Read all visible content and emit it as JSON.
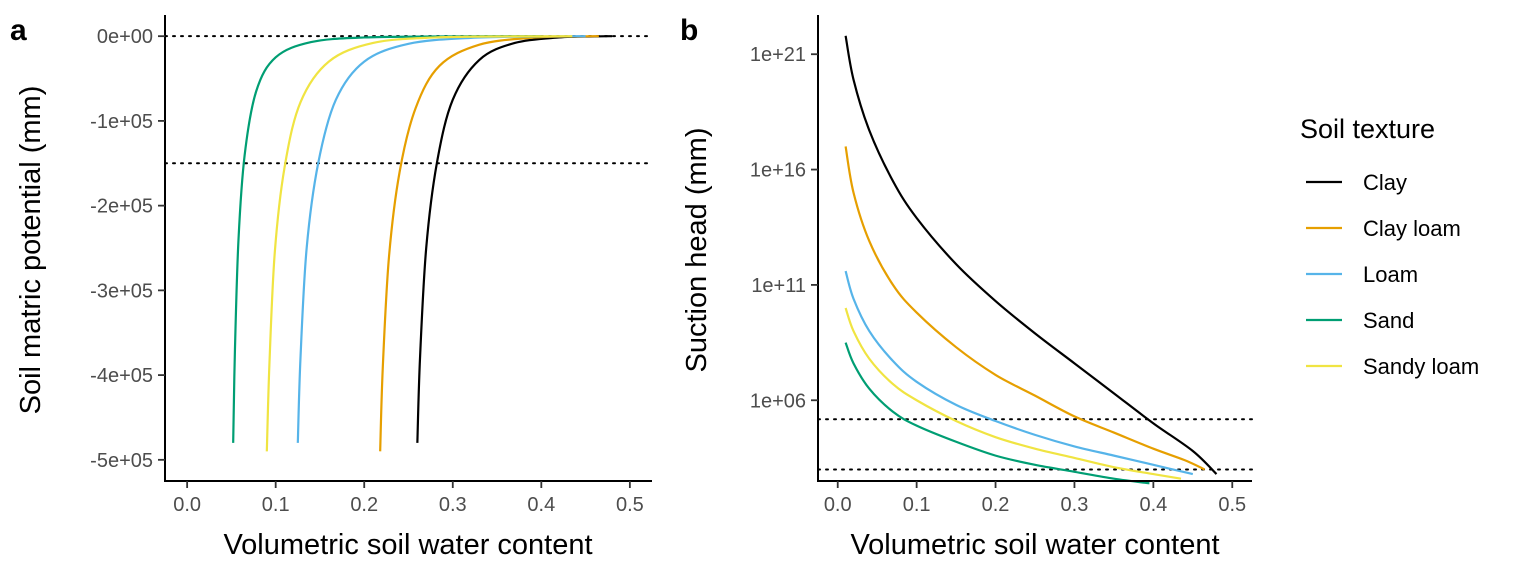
{
  "panels": {
    "a": {
      "tag": "a"
    },
    "b": {
      "tag": "b"
    }
  },
  "legend": {
    "title": "Soil texture",
    "placement": "right",
    "entries": [
      {
        "name": "Clay",
        "color": "#000000"
      },
      {
        "name": "Clay loam",
        "color": "#E69F00"
      },
      {
        "name": "Loam",
        "color": "#56B4E9"
      },
      {
        "name": "Sand",
        "color": "#009E73"
      },
      {
        "name": "Sandy loam",
        "color": "#F0E442"
      }
    ]
  },
  "chart_data": [
    {
      "type": "line",
      "panel": "a",
      "xlabel": "Volumetric soil water content",
      "ylabel": "Soil matric potential (mm)",
      "xlim": [
        -0.025,
        0.525
      ],
      "ylim": [
        -525000,
        25000
      ],
      "x_ticks": [
        0.0,
        0.1,
        0.2,
        0.3,
        0.4,
        0.5
      ],
      "x_tick_labels": [
        "0.0",
        "0.1",
        "0.2",
        "0.3",
        "0.4",
        "0.5"
      ],
      "y_ticks": [
        0,
        -100000,
        -200000,
        -300000,
        -400000,
        -500000
      ],
      "y_tick_labels": [
        "0e+00",
        "-1e+05",
        "-2e+05",
        "-3e+05",
        "-4e+05",
        "-5e+05"
      ],
      "reference_lines_y": [
        0,
        -150000
      ],
      "reference_line_style": "dotted",
      "grid": false,
      "series": [
        {
          "name": "Clay",
          "color": "#000000",
          "x": [
            0.26,
            0.263,
            0.27,
            0.282,
            0.3,
            0.33,
            0.37,
            0.42,
            0.46,
            0.48
          ],
          "y": [
            -480000,
            -380000,
            -250000,
            -150000,
            -75000,
            -28000,
            -8000,
            -1500,
            -300,
            0
          ]
        },
        {
          "name": "Clay loam",
          "color": "#E69F00",
          "x": [
            0.218,
            0.221,
            0.228,
            0.24,
            0.258,
            0.285,
            0.33,
            0.39,
            0.44,
            0.465
          ],
          "y": [
            -490000,
            -390000,
            -260000,
            -160000,
            -85000,
            -35000,
            -10000,
            -1800,
            -300,
            0
          ]
        },
        {
          "name": "Loam",
          "color": "#56B4E9",
          "x": [
            0.125,
            0.128,
            0.135,
            0.148,
            0.168,
            0.2,
            0.25,
            0.32,
            0.4,
            0.45
          ],
          "y": [
            -480000,
            -380000,
            -250000,
            -150000,
            -75000,
            -30000,
            -9000,
            -2000,
            -300,
            0
          ]
        },
        {
          "name": "Sand",
          "color": "#009E73",
          "x": [
            0.052,
            0.054,
            0.058,
            0.065,
            0.078,
            0.1,
            0.14,
            0.2,
            0.3,
            0.4
          ],
          "y": [
            -480000,
            -370000,
            -240000,
            -140000,
            -65000,
            -25000,
            -7000,
            -1500,
            -200,
            0
          ]
        },
        {
          "name": "Sandy loam",
          "color": "#F0E442",
          "x": [
            0.09,
            0.093,
            0.099,
            0.11,
            0.128,
            0.16,
            0.21,
            0.28,
            0.37,
            0.435
          ],
          "y": [
            -490000,
            -385000,
            -255000,
            -155000,
            -78000,
            -30000,
            -8000,
            -1500,
            -250,
            0
          ]
        }
      ]
    },
    {
      "type": "line",
      "panel": "b",
      "xlabel": "Volumetric soil water content",
      "ylabel": "Suction head (mm)",
      "y_scale": "log10",
      "xlim": [
        -0.025,
        0.525
      ],
      "ylim_log10": [
        2.5,
        22.7
      ],
      "x_ticks": [
        0.0,
        0.1,
        0.2,
        0.3,
        0.4,
        0.5
      ],
      "x_tick_labels": [
        "0.0",
        "0.1",
        "0.2",
        "0.3",
        "0.4",
        "0.5"
      ],
      "y_ticks": [
        1000000.0,
        100000000000.0,
        1e+16,
        1e+21
      ],
      "y_tick_labels": [
        "1e+06",
        "1e+11",
        "1e+16",
        "1e+21"
      ],
      "reference_lines_y": [
        150000,
        1000
      ],
      "reference_line_style": "dotted",
      "grid": false,
      "series": [
        {
          "name": "Clay",
          "color": "#000000",
          "x": [
            0.01,
            0.02,
            0.04,
            0.07,
            0.1,
            0.15,
            0.2,
            0.25,
            0.3,
            0.35,
            0.4,
            0.45,
            0.48
          ],
          "y_log10": [
            21.8,
            19.9,
            17.7,
            15.5,
            13.9,
            11.9,
            10.3,
            8.9,
            7.6,
            6.3,
            5.0,
            3.8,
            2.8
          ]
        },
        {
          "name": "Clay loam",
          "color": "#E69F00",
          "x": [
            0.01,
            0.02,
            0.04,
            0.07,
            0.1,
            0.15,
            0.2,
            0.25,
            0.3,
            0.35,
            0.4,
            0.44,
            0.465
          ],
          "y_log10": [
            17.0,
            15.0,
            12.9,
            11.0,
            9.8,
            8.3,
            7.1,
            6.2,
            5.3,
            4.6,
            3.9,
            3.4,
            3.0
          ]
        },
        {
          "name": "Loam",
          "color": "#56B4E9",
          "x": [
            0.01,
            0.02,
            0.04,
            0.07,
            0.1,
            0.15,
            0.2,
            0.25,
            0.3,
            0.35,
            0.4,
            0.45
          ],
          "y_log10": [
            11.6,
            10.4,
            9.0,
            7.7,
            6.8,
            5.8,
            5.1,
            4.5,
            4.0,
            3.6,
            3.2,
            2.8
          ]
        },
        {
          "name": "Sand",
          "color": "#009E73",
          "x": [
            0.01,
            0.02,
            0.04,
            0.07,
            0.1,
            0.15,
            0.2,
            0.25,
            0.3,
            0.35,
            0.395
          ],
          "y_log10": [
            8.5,
            7.6,
            6.5,
            5.5,
            4.9,
            4.2,
            3.6,
            3.2,
            2.9,
            2.6,
            2.4
          ]
        },
        {
          "name": "Sandy loam",
          "color": "#F0E442",
          "x": [
            0.01,
            0.02,
            0.04,
            0.07,
            0.1,
            0.15,
            0.2,
            0.25,
            0.3,
            0.35,
            0.4,
            0.435
          ],
          "y_log10": [
            10.0,
            9.0,
            7.8,
            6.7,
            6.0,
            5.1,
            4.4,
            3.9,
            3.5,
            3.1,
            2.8,
            2.6
          ]
        }
      ]
    }
  ]
}
